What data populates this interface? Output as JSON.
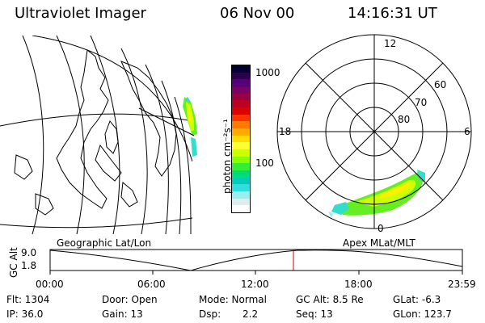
{
  "header": {
    "title": "Ultraviolet Imager",
    "date": "06 Nov 00",
    "time": "14:16:31 UT"
  },
  "colorbar": {
    "unit_label": "photon cm⁻²s⁻¹",
    "ticks": [
      "1000",
      "100"
    ],
    "colors": [
      "#000033",
      "#2a004a",
      "#55007a",
      "#7a0066",
      "#990044",
      "#bb0022",
      "#dd0000",
      "#ff3300",
      "#ff7a00",
      "#ffaa00",
      "#ffdd00",
      "#ffff33",
      "#ccff00",
      "#88ff00",
      "#33ee33",
      "#00dd77",
      "#00ccbb",
      "#33dddd",
      "#99eeee",
      "#ddeeee",
      "#ffffff"
    ]
  },
  "polar": {
    "mlt_labels": {
      "top": "12",
      "left": "18",
      "right": "6",
      "bottom": "0"
    },
    "lat_labels": [
      "60",
      "70",
      "80"
    ]
  },
  "labels": {
    "geo": "Geographic Lat/Lon",
    "apex": "Apex MLat/MLT"
  },
  "altitude_plot": {
    "ylabel": "GC Alt",
    "yticks": [
      "9.0",
      "1.8"
    ],
    "xticks": [
      "00:00",
      "06:00",
      "12:00",
      "18:00",
      "23:59"
    ],
    "current_time_color": "#cc0000"
  },
  "info": {
    "row1": [
      "Flt: 1304",
      "Door: Open",
      "Mode: Normal",
      "GC Alt: 8.5 Re",
      "GLat: -6.3"
    ],
    "row2": [
      "IP: 36.0",
      "Gain: 13",
      "Dsp:",
      "2.2",
      "Seq: 13",
      "GLon: 123.7"
    ]
  }
}
